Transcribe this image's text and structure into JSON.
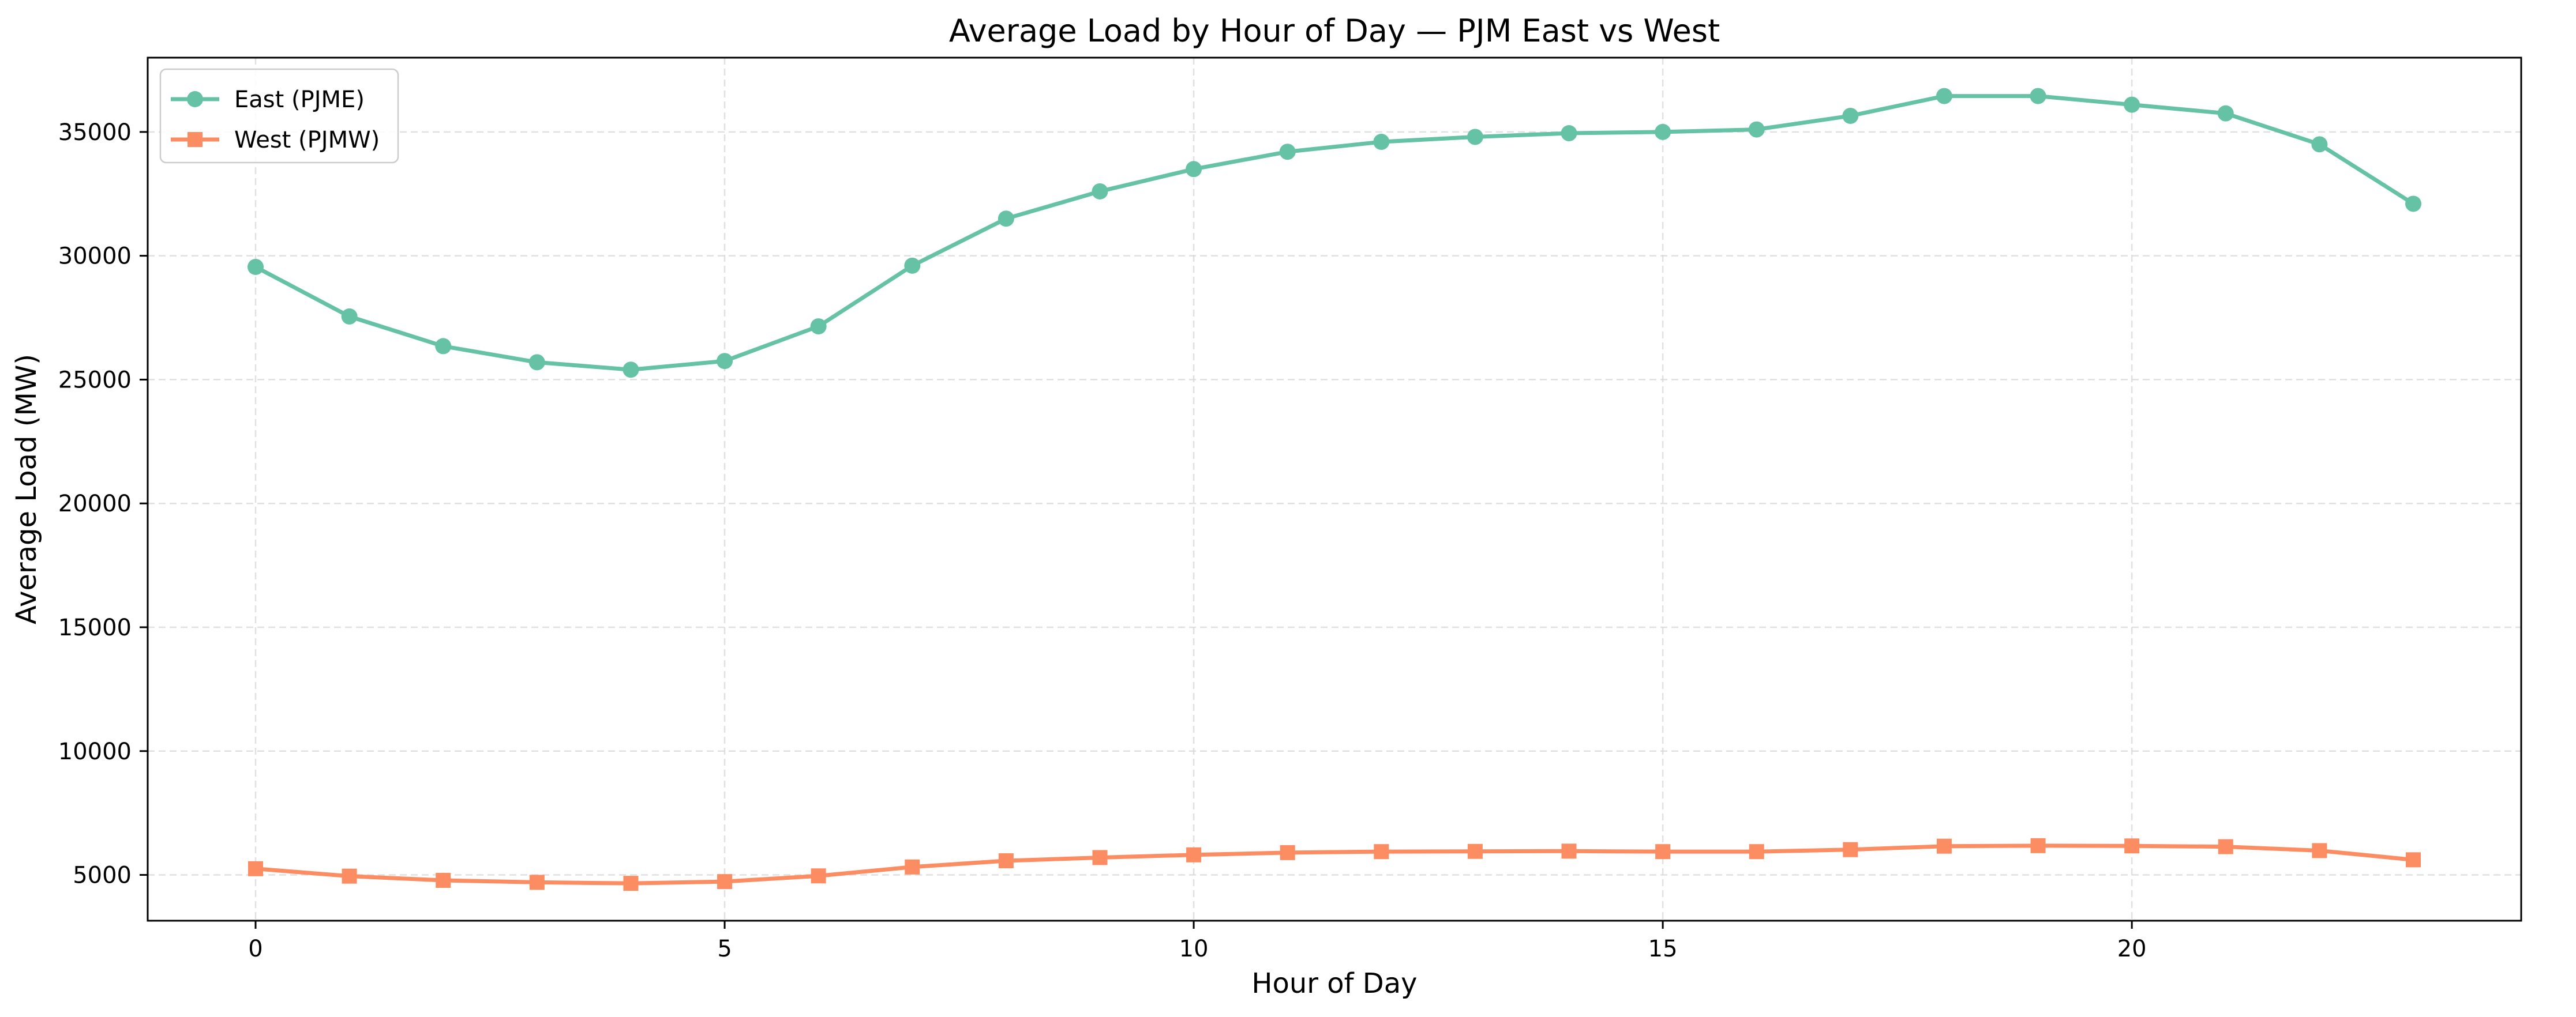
{
  "chart_data": {
    "type": "line",
    "title": "Average Load by Hour of Day — PJM East vs West",
    "xlabel": "Hour of Day",
    "ylabel": "Average Load (MW)",
    "xlim": [
      -1.15,
      24.15
    ],
    "ylim": [
      3150,
      38000
    ],
    "xticks": [
      0,
      5,
      10,
      15,
      20
    ],
    "yticks": [
      5000,
      10000,
      15000,
      20000,
      25000,
      30000,
      35000
    ],
    "grid": true,
    "legend_position": "top-left",
    "x": [
      0,
      1,
      2,
      3,
      4,
      5,
      6,
      7,
      8,
      9,
      10,
      11,
      12,
      13,
      14,
      15,
      16,
      17,
      18,
      19,
      20,
      21,
      22,
      23
    ],
    "series": [
      {
        "name": "East (PJME)",
        "color": "#66c2a5",
        "marker": "circle",
        "values": [
          29550,
          27550,
          26350,
          25700,
          25400,
          25750,
          27150,
          29600,
          31500,
          32600,
          33500,
          34200,
          34600,
          34800,
          34950,
          35000,
          35100,
          35650,
          36450,
          36450,
          36100,
          35750,
          34500,
          32100
        ]
      },
      {
        "name": "West (PJMW)",
        "color": "#fc8d62",
        "marker": "square",
        "values": [
          5250,
          4950,
          4780,
          4700,
          4660,
          4730,
          4960,
          5320,
          5570,
          5700,
          5810,
          5900,
          5940,
          5950,
          5960,
          5940,
          5940,
          6020,
          6160,
          6180,
          6170,
          6140,
          5980,
          5610
        ]
      }
    ]
  }
}
